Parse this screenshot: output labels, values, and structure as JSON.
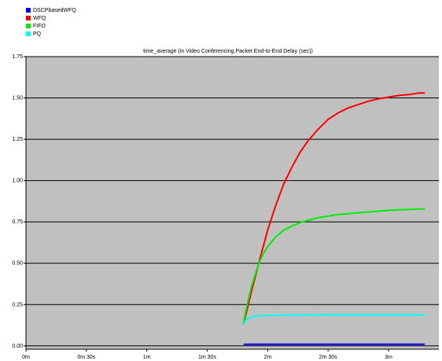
{
  "chart_data": {
    "type": "line",
    "title": "time_average (in Video Conferencing.Packet End-to-End Delay (sec))",
    "xlabel": "",
    "ylabel": "",
    "x_tick_labels": [
      "0m",
      "0m 30s",
      "1m",
      "1m 30s",
      "2m",
      "2m 30s",
      "3m"
    ],
    "x_tick_seconds": [
      0,
      30,
      60,
      90,
      120,
      150,
      180
    ],
    "xlim": [
      0,
      205
    ],
    "y_tick_labels": [
      "0.00",
      "0.25",
      "0.50",
      "0.75",
      "1.00",
      "1.25",
      "1.50",
      "1.75"
    ],
    "y_ticks": [
      0,
      0.25,
      0.5,
      0.75,
      1.0,
      1.25,
      1.5,
      1.75
    ],
    "ylim": [
      -0.02,
      1.75
    ],
    "grid": "horizontal",
    "legend": "top-left",
    "series": [
      {
        "name": "DSCPbasedWFQ",
        "color": "#0000ff",
        "x": [
          108,
          120,
          140,
          160,
          180,
          198
        ],
        "y": [
          0.01,
          0.01,
          0.01,
          0.01,
          0.01,
          0.01
        ]
      },
      {
        "name": "WFQ",
        "color": "#ff0000",
        "x": [
          108,
          112,
          116,
          120,
          124,
          128,
          132,
          136,
          140,
          145,
          150,
          155,
          160,
          165,
          170,
          175,
          180,
          185,
          190,
          195,
          198
        ],
        "y": [
          0.13,
          0.33,
          0.52,
          0.7,
          0.85,
          0.98,
          1.08,
          1.17,
          1.24,
          1.31,
          1.37,
          1.41,
          1.44,
          1.46,
          1.48,
          1.495,
          1.505,
          1.515,
          1.52,
          1.53,
          1.53
        ]
      },
      {
        "name": "FIFO",
        "color": "#00ee00",
        "x": [
          108,
          110,
          112,
          114,
          116,
          118,
          120,
          124,
          128,
          132,
          136,
          140,
          145,
          150,
          155,
          160,
          165,
          170,
          175,
          180,
          185,
          190,
          195,
          198
        ],
        "y": [
          0.14,
          0.26,
          0.36,
          0.44,
          0.51,
          0.56,
          0.6,
          0.66,
          0.7,
          0.725,
          0.745,
          0.76,
          0.775,
          0.785,
          0.795,
          0.8,
          0.805,
          0.81,
          0.815,
          0.82,
          0.823,
          0.825,
          0.828,
          0.828
        ]
      },
      {
        "name": "PQ",
        "color": "#00ffff",
        "x": [
          108,
          109,
          110,
          112,
          114,
          116,
          120,
          130,
          140,
          150,
          160,
          170,
          180,
          190,
          198
        ],
        "y": [
          0.13,
          0.15,
          0.165,
          0.175,
          0.18,
          0.182,
          0.184,
          0.186,
          0.187,
          0.188,
          0.188,
          0.188,
          0.188,
          0.188,
          0.188
        ]
      }
    ]
  }
}
